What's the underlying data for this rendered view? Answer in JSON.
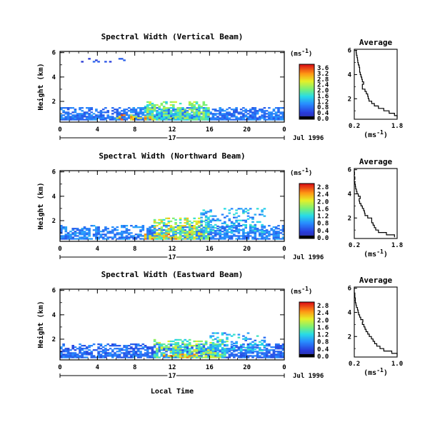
{
  "chart_data": [
    {
      "type": "heatmap",
      "title": "Spectral Width (Vertical Beam)",
      "xlabel": "",
      "ylabel": "Height (km)",
      "x_ticks": [
        "0",
        "4",
        "8",
        "12",
        "16",
        "20",
        "0"
      ],
      "y_ticks": [
        "2",
        "4",
        "6"
      ],
      "xlim": [
        0,
        24
      ],
      "ylim": [
        0.3,
        6.1
      ],
      "date_day": "17",
      "date_label": "Jul 1996",
      "colorbar": {
        "unit": "(ms",
        "exp": "-1",
        "close": ")",
        "ticks": [
          "0.0",
          "0.4",
          "0.8",
          "1.2",
          "1.6",
          "2.0",
          "2.4",
          "2.8",
          "3.2",
          "3.6"
        ],
        "max": 3.8
      },
      "profile": {
        "title": "Average",
        "xlabel": "(ms",
        "xexp": "-1",
        "xclose": ")",
        "x_ticks": [
          "0.2",
          "1.8"
        ],
        "x_tick_values": [
          0.2,
          1.8
        ],
        "xlim": [
          0.2,
          1.8
        ],
        "y_ticks": [
          "2",
          "4",
          "6"
        ],
        "heights": [
          0.4,
          0.6,
          0.8,
          1.0,
          1.2,
          1.4,
          1.6,
          1.8,
          2.0,
          2.2,
          2.4,
          2.6,
          2.8,
          3.0,
          3.2,
          3.4,
          3.6,
          3.8,
          4.0,
          4.2,
          4.4,
          4.6,
          4.8,
          5.0,
          5.2,
          5.4,
          5.6,
          5.8,
          6.0
        ],
        "values": [
          1.8,
          1.7,
          1.5,
          1.3,
          1.1,
          0.95,
          0.85,
          0.75,
          0.72,
          0.7,
          0.65,
          0.6,
          0.5,
          0.5,
          0.55,
          0.5,
          0.48,
          0.45,
          0.42,
          0.4,
          0.4,
          0.38,
          0.35,
          0.33,
          0.32,
          0.3,
          0.28,
          0.27,
          0.25
        ]
      },
      "layers": [
        {
          "t0": 0,
          "t1": 24,
          "h0": 0.45,
          "h1": 1.5,
          "v_min": 0.6,
          "v_max": 1.2,
          "fill": 0.95
        },
        {
          "t0": 9,
          "t1": 16,
          "h0": 0.45,
          "h1": 2.0,
          "v_min": 1.4,
          "v_max": 2.6,
          "fill": 0.8
        },
        {
          "t0": 6,
          "t1": 10,
          "h0": 0.45,
          "h1": 0.9,
          "v_min": 2.2,
          "v_max": 3.6,
          "fill": 0.6
        },
        {
          "t0": 2,
          "t1": 8,
          "h0": 5.2,
          "h1": 5.6,
          "v_min": 0.4,
          "v_max": 0.8,
          "fill": 0.12
        }
      ]
    },
    {
      "type": "heatmap",
      "title": "Spectral Width (Northward Beam)",
      "xlabel": "",
      "ylabel": "Height (km)",
      "x_ticks": [
        "0",
        "4",
        "8",
        "12",
        "16",
        "20",
        "0"
      ],
      "y_ticks": [
        "2",
        "4",
        "6"
      ],
      "xlim": [
        0,
        24
      ],
      "ylim": [
        0.3,
        6.1
      ],
      "date_day": "17",
      "date_label": "Jul 1996",
      "colorbar": {
        "unit": "(ms",
        "exp": "-1",
        "close": ")",
        "ticks": [
          "0.0",
          "0.4",
          "0.8",
          "1.2",
          "1.6",
          "2.0",
          "2.4",
          "2.8"
        ],
        "max": 3.0
      },
      "profile": {
        "title": "Average",
        "xlabel": "(ms",
        "xexp": "-1",
        "xclose": ")",
        "x_ticks": [
          "0.2",
          "1.8"
        ],
        "x_tick_values": [
          0.2,
          1.8
        ],
        "xlim": [
          0.2,
          1.8
        ],
        "y_ticks": [
          "2",
          "4",
          "6"
        ],
        "heights": [
          0.4,
          0.6,
          0.8,
          1.0,
          1.2,
          1.4,
          1.6,
          1.8,
          2.0,
          2.2,
          2.4,
          2.6,
          2.8,
          3.0,
          3.2,
          3.4,
          3.6,
          3.8,
          4.0,
          4.2,
          4.4,
          4.6,
          4.8,
          5.0,
          5.2,
          5.4,
          5.6,
          5.8,
          6.0
        ],
        "values": [
          1.7,
          1.4,
          1.1,
          1.0,
          0.95,
          0.9,
          0.85,
          0.85,
          0.7,
          0.6,
          0.58,
          0.55,
          0.5,
          0.45,
          0.4,
          0.38,
          0.42,
          0.35,
          0.3,
          0.28,
          0.25,
          0.24,
          0.22,
          0.2,
          0.22,
          0.2,
          0.21,
          0.2,
          0.2
        ]
      },
      "layers": [
        {
          "t0": 0,
          "t1": 24,
          "h0": 0.45,
          "h1": 1.6,
          "v_min": 0.5,
          "v_max": 1.0,
          "fill": 0.85
        },
        {
          "t0": 10,
          "t1": 16,
          "h0": 0.45,
          "h1": 2.2,
          "v_min": 1.2,
          "v_max": 2.4,
          "fill": 0.7
        },
        {
          "t0": 15,
          "t1": 22,
          "h0": 1.0,
          "h1": 3.0,
          "v_min": 0.6,
          "v_max": 1.4,
          "fill": 0.5
        },
        {
          "t0": 9,
          "t1": 13,
          "h0": 0.45,
          "h1": 0.9,
          "v_min": 1.8,
          "v_max": 2.8,
          "fill": 0.5
        }
      ]
    },
    {
      "type": "heatmap",
      "title": "Spectral Width (Eastward Beam)",
      "xlabel": "Local Time",
      "ylabel": "Height (km)",
      "x_ticks": [
        "0",
        "4",
        "8",
        "12",
        "16",
        "20",
        "0"
      ],
      "y_ticks": [
        "2",
        "4",
        "6"
      ],
      "xlim": [
        0,
        24
      ],
      "ylim": [
        0.3,
        6.1
      ],
      "date_day": "17",
      "date_label": "Jul 1996",
      "colorbar": {
        "unit": "(ms",
        "exp": "-1",
        "close": ")",
        "ticks": [
          "0.0",
          "0.4",
          "0.8",
          "1.2",
          "1.6",
          "2.0",
          "2.4",
          "2.8"
        ],
        "max": 3.0
      },
      "profile": {
        "title": "Average",
        "xlabel": "(ms",
        "xexp": "-1",
        "xclose": ")",
        "x_ticks": [
          "0.2",
          "1.0"
        ],
        "x_tick_values": [
          0.2,
          1.0
        ],
        "xlim": [
          0.2,
          1.0
        ],
        "y_ticks": [
          "2",
          "4",
          "6"
        ],
        "heights": [
          0.4,
          0.6,
          0.8,
          1.0,
          1.2,
          1.4,
          1.6,
          1.8,
          2.0,
          2.2,
          2.4,
          2.6,
          2.8,
          3.0,
          3.2,
          3.4,
          3.6,
          3.8,
          4.0,
          4.2,
          4.4,
          4.6,
          4.8,
          5.0,
          5.2,
          5.4,
          5.6,
          5.8,
          6.0
        ],
        "values": [
          1.0,
          0.9,
          0.75,
          0.68,
          0.62,
          0.58,
          0.55,
          0.52,
          0.48,
          0.45,
          0.42,
          0.4,
          0.38,
          0.35,
          0.36,
          0.32,
          0.3,
          0.28,
          0.27,
          0.26,
          0.24,
          0.23,
          0.22,
          0.22,
          0.21,
          0.21,
          0.2,
          0.2,
          0.2
        ]
      },
      "layers": [
        {
          "t0": 0,
          "t1": 24,
          "h0": 0.45,
          "h1": 1.6,
          "v_min": 0.4,
          "v_max": 0.9,
          "fill": 0.85
        },
        {
          "t0": 10,
          "t1": 18,
          "h0": 0.45,
          "h1": 2.0,
          "v_min": 1.0,
          "v_max": 2.2,
          "fill": 0.7
        },
        {
          "t0": 16,
          "t1": 22,
          "h0": 1.0,
          "h1": 2.5,
          "v_min": 0.6,
          "v_max": 1.4,
          "fill": 0.5
        },
        {
          "t0": 11,
          "t1": 15,
          "h0": 0.45,
          "h1": 0.8,
          "v_min": 1.8,
          "v_max": 2.8,
          "fill": 0.5
        }
      ]
    }
  ]
}
